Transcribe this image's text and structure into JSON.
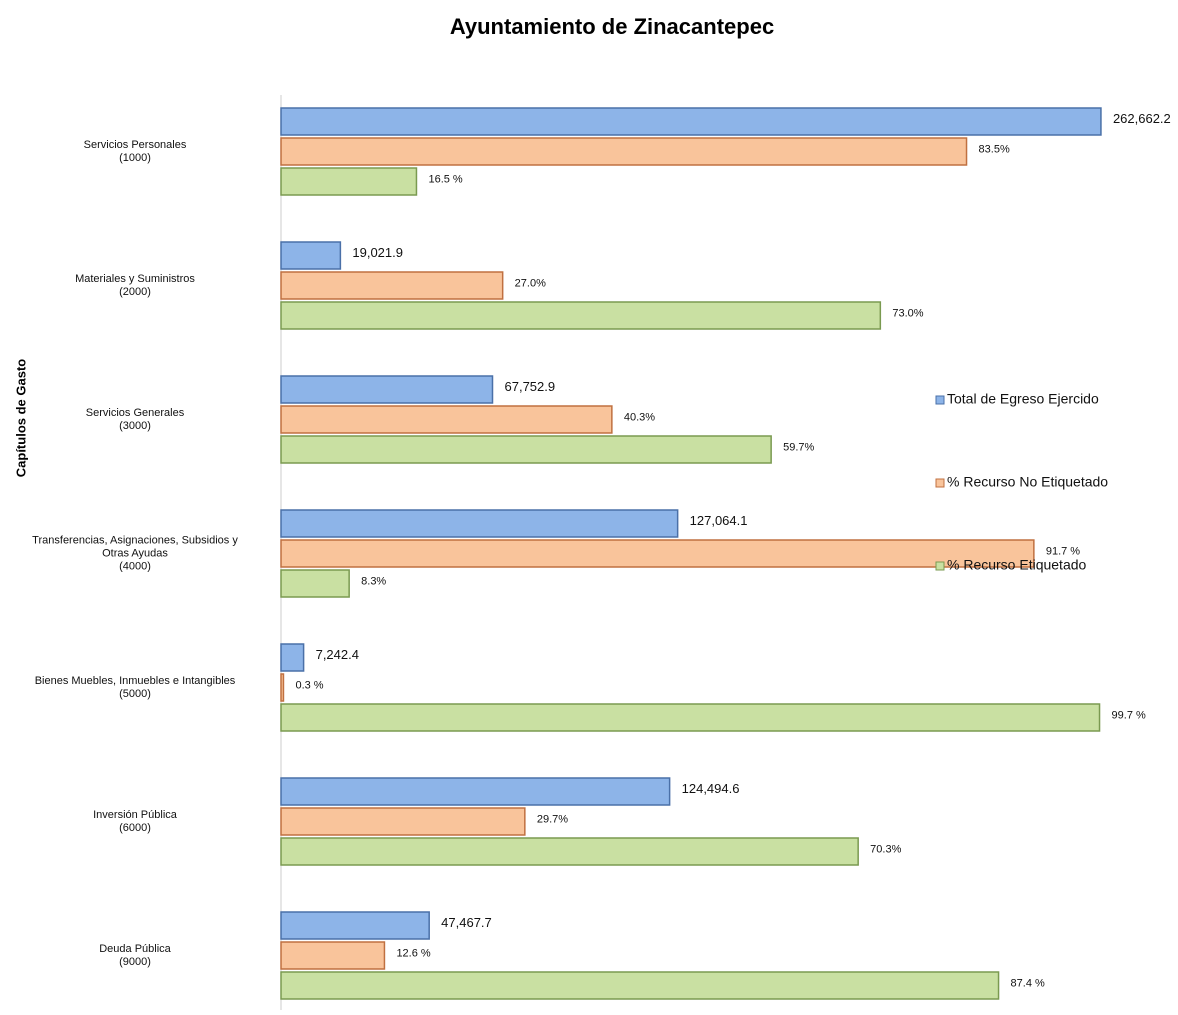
{
  "chart_data": {
    "type": "bar",
    "orientation": "horizontal",
    "title": "Ayuntamiento de Zinacantepec",
    "y_label": "Capítulos de Gasto",
    "categories": [
      "Servicios Personales\n(1000)",
      "Materiales y Suministros\n(2000)",
      "Servicios Generales\n(3000)",
      "Transferencias, Asignaciones, Subsidios y\nOtras Ayudas\n(4000)",
      "Bienes Muebles, Inmuebles e Intangibles\n(5000)",
      "Inversión Pública\n(6000)",
      "Deuda Pública\n(9000)"
    ],
    "xlim": [
      0,
      263000
    ],
    "x2lim": [
      0,
      100
    ],
    "legend": "right",
    "series": [
      {
        "name": "Total de Egreso Ejercido",
        "color": "#8db4e8",
        "values": [
          262662.2,
          19021.9,
          67752.9,
          127064.1,
          7242.4,
          124494.6,
          47467.7
        ],
        "value_labels": [
          "262,662.2",
          "19,021.9",
          "67,752.9",
          "127,064.1",
          "7,242.4",
          "124,494.6",
          "47,467.7"
        ]
      },
      {
        "name": "% Recurso No Etiquetado",
        "color": "#f9c49b",
        "axis": "x2",
        "values": [
          83.5,
          27.0,
          40.3,
          91.7,
          0.3,
          29.7,
          12.6
        ],
        "value_labels": [
          "83.5%",
          "27.0%",
          "40.3%",
          "91.7 %",
          "0.3 %",
          "29.7%",
          "12.6 %"
        ]
      },
      {
        "name": "% Recurso Etiquetado",
        "color": "#c9e0a2",
        "axis": "x2",
        "values": [
          16.5,
          73.0,
          59.7,
          8.3,
          99.7,
          70.3,
          87.4
        ],
        "value_labels": [
          "16.5 %",
          "73.0%",
          "59.7%",
          "8.3%",
          "99.7 %",
          "70.3%",
          "87.4 %"
        ]
      }
    ]
  }
}
